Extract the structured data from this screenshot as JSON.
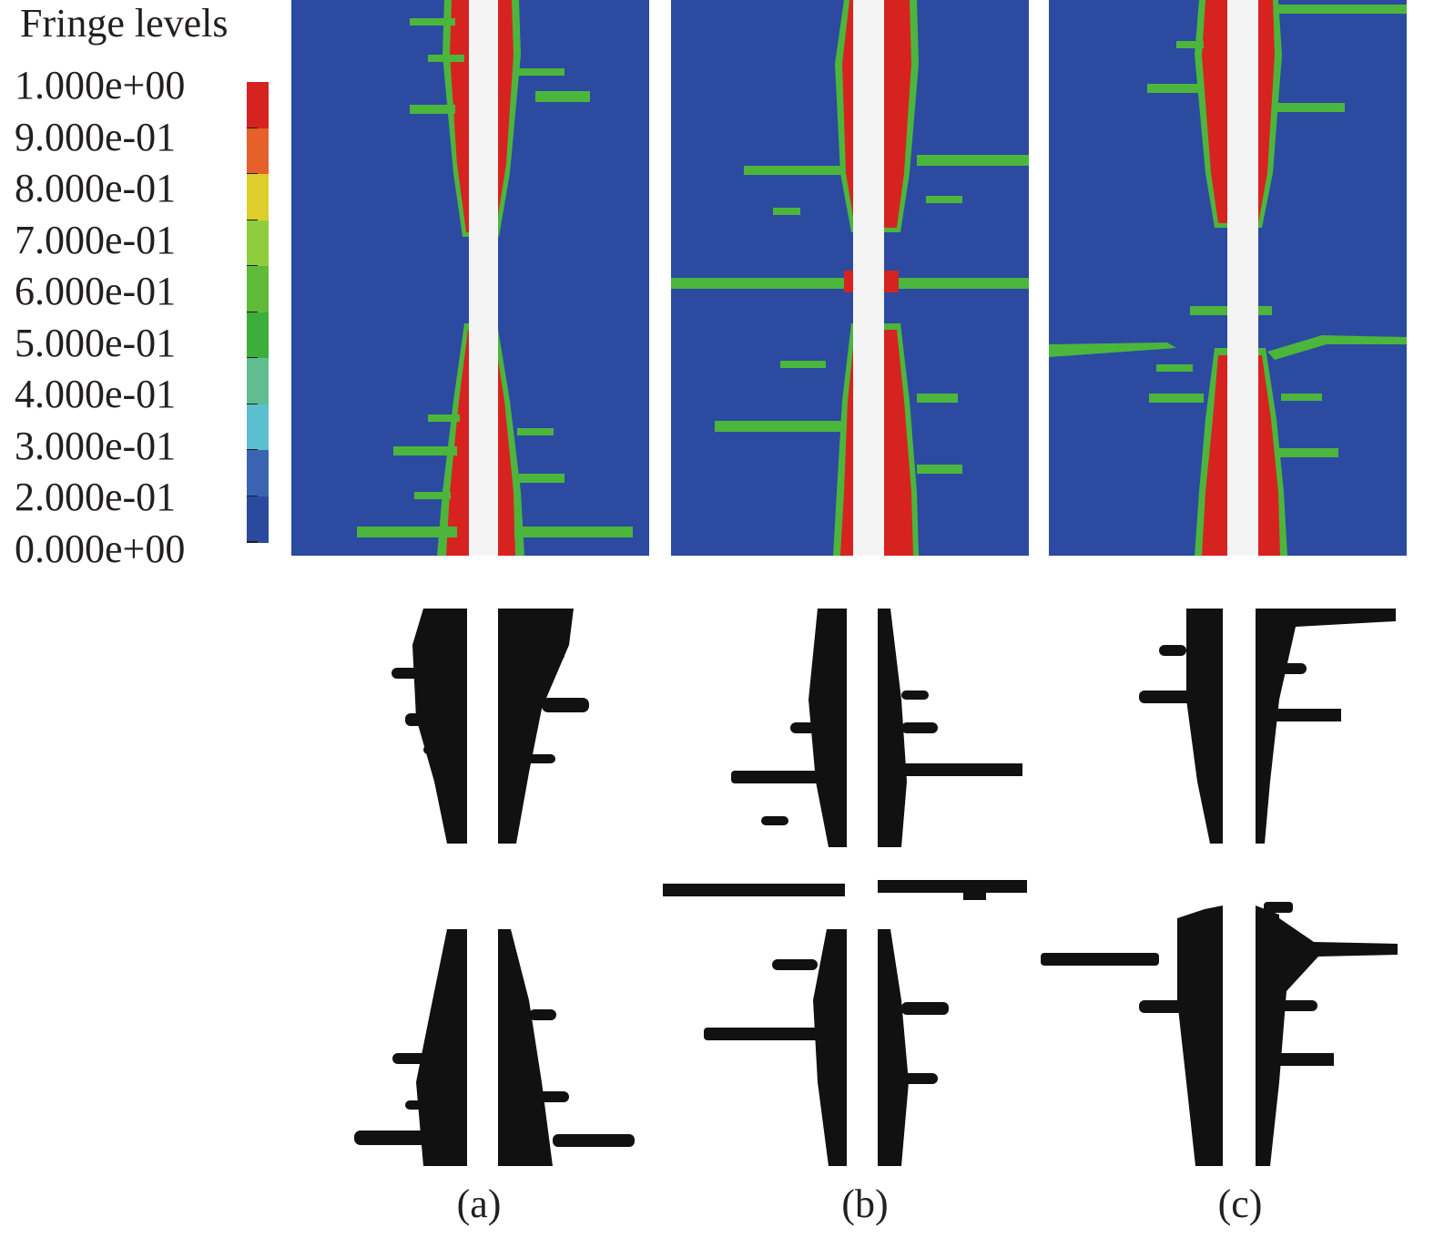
{
  "legend": {
    "title": "Fringe levels",
    "levels": [
      "1.000e+00",
      "9.000e-01",
      "8.000e-01",
      "7.000e-01",
      "6.000e-01",
      "5.000e-01",
      "4.000e-01",
      "3.000e-01",
      "2.000e-01",
      "0.000e+00"
    ],
    "colors": [
      "#d7231f",
      "#e6602a",
      "#ddce2c",
      "#8fcd3d",
      "#5fba3a",
      "#3cae3c",
      "#5fbd8f",
      "#5cbfd0",
      "#3a64b2",
      "#2c4a9d"
    ]
  },
  "colors": {
    "background": "#2c4aa0",
    "crack_core": "#d7231f",
    "crack_halo": "#4cb63c",
    "hole": "#f4f4f4",
    "experiment": "#111111"
  },
  "panels": [
    {
      "caption": "(a)"
    },
    {
      "caption": "(b)"
    },
    {
      "caption": "(c)"
    }
  ]
}
